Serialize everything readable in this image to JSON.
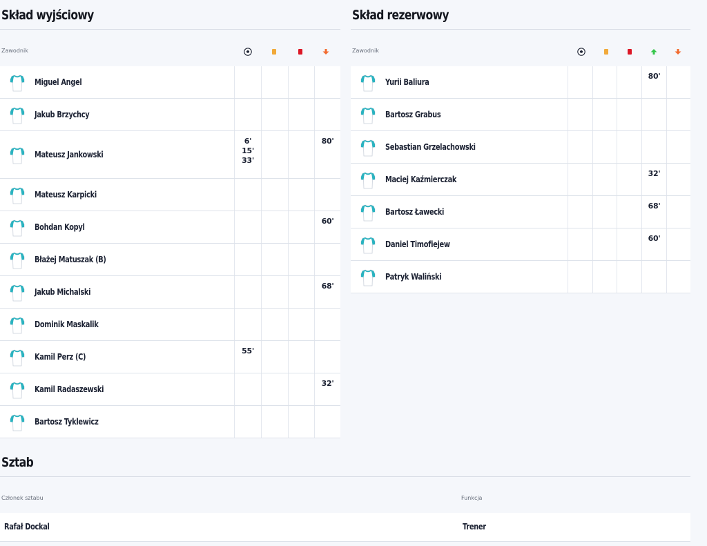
{
  "colors": {
    "background": "#f5f7fb",
    "row_background": "#ffffff",
    "shirt_accent": "#2ab3c0",
    "yellow_card": "#f1a93a",
    "red_card": "#dc1726",
    "sub_in": "#35c64a",
    "sub_out": "#f26b2f"
  },
  "icons": {
    "goal": "soccer-ball-icon",
    "yellow_card": "yellow-card-icon",
    "red_card": "red-card-icon",
    "sub_in": "arrow-up-icon",
    "sub_out": "arrow-down-icon",
    "player": "shirt-icon"
  },
  "starting": {
    "title": "Skład wyjściowy",
    "column_player": "Zawodnik",
    "players": [
      {
        "name": "Miguel Angel",
        "goals": "",
        "yellow": "",
        "red": "",
        "out": ""
      },
      {
        "name": "Jakub Brzychcy",
        "goals": "",
        "yellow": "",
        "red": "",
        "out": ""
      },
      {
        "name": "Mateusz Jankowski",
        "goals": "6'\n15'\n33'",
        "yellow": "",
        "red": "",
        "out": "80'"
      },
      {
        "name": "Mateusz Karpicki",
        "goals": "",
        "yellow": "",
        "red": "",
        "out": ""
      },
      {
        "name": "Bohdan Kopyl",
        "goals": "",
        "yellow": "",
        "red": "",
        "out": "60'"
      },
      {
        "name": "Błażej Matuszak (B)",
        "goals": "",
        "yellow": "",
        "red": "",
        "out": ""
      },
      {
        "name": "Jakub Michalski",
        "goals": "",
        "yellow": "",
        "red": "",
        "out": "68'"
      },
      {
        "name": "Dominik Maskalik",
        "goals": "",
        "yellow": "",
        "red": "",
        "out": ""
      },
      {
        "name": "Kamil Perz (C)",
        "goals": "55'",
        "yellow": "",
        "red": "",
        "out": ""
      },
      {
        "name": "Kamil Radaszewski",
        "goals": "",
        "yellow": "",
        "red": "",
        "out": "32'"
      },
      {
        "name": "Bartosz Tyklewicz",
        "goals": "",
        "yellow": "",
        "red": "",
        "out": ""
      }
    ]
  },
  "reserves": {
    "title": "Skład rezerwowy",
    "column_player": "Zawodnik",
    "players": [
      {
        "name": "Yurii Baliura",
        "goals": "",
        "yellow": "",
        "red": "",
        "in": "80'",
        "out": ""
      },
      {
        "name": "Bartosz Grabus",
        "goals": "",
        "yellow": "",
        "red": "",
        "in": "",
        "out": ""
      },
      {
        "name": "Sebastian Grzelachowski",
        "goals": "",
        "yellow": "",
        "red": "",
        "in": "",
        "out": ""
      },
      {
        "name": "Maciej Kaźmierczak",
        "goals": "",
        "yellow": "",
        "red": "",
        "in": "32'",
        "out": ""
      },
      {
        "name": "Bartosz Ławecki",
        "goals": "",
        "yellow": "",
        "red": "",
        "in": "68'",
        "out": ""
      },
      {
        "name": "Daniel Timofiejew",
        "goals": "",
        "yellow": "",
        "red": "",
        "in": "60'",
        "out": ""
      },
      {
        "name": "Patryk Waliński",
        "goals": "",
        "yellow": "",
        "red": "",
        "in": "",
        "out": ""
      }
    ]
  },
  "staff": {
    "title": "Sztab",
    "column_member": "Członek sztabu",
    "column_role": "Funkcja",
    "members": [
      {
        "name": "Rafał Dockal",
        "role": "Trener"
      }
    ]
  }
}
